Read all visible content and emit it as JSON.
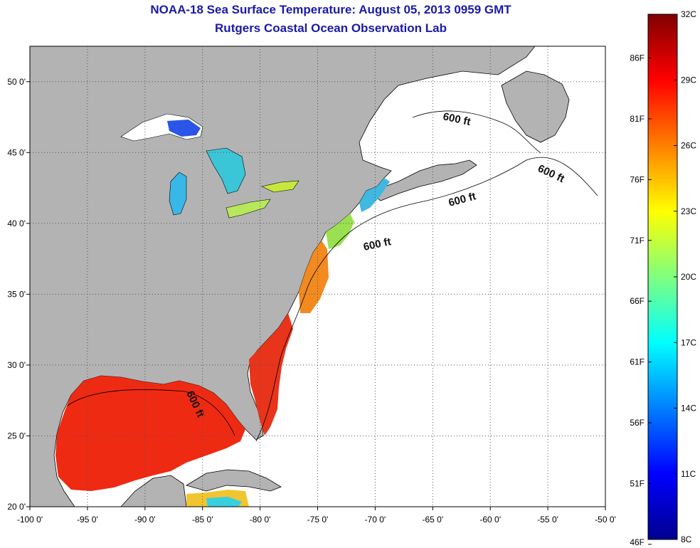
{
  "title": "NOAA-18 Sea Surface Temperature:  August 05, 2013 0959 GMT",
  "subtitle": "Rutgers Coastal Ocean Observation Lab",
  "map": {
    "lon_range": [
      -100,
      -50
    ],
    "lat_range": [
      20,
      52.5
    ],
    "lon_ticks": [
      {
        "value": -100,
        "label": "-100 0'"
      },
      {
        "value": -95,
        "label": "-95 0'"
      },
      {
        "value": -90,
        "label": "-90 0'"
      },
      {
        "value": -85,
        "label": "-85 0'"
      },
      {
        "value": -80,
        "label": "-80 0'"
      },
      {
        "value": -75,
        "label": "-75 0'"
      },
      {
        "value": -70,
        "label": "-70 0'"
      },
      {
        "value": -65,
        "label": "-65 0'"
      },
      {
        "value": -60,
        "label": "-60 0'"
      },
      {
        "value": -55,
        "label": "-55 0'"
      },
      {
        "value": -50,
        "label": "-50 0'"
      }
    ],
    "lat_ticks": [
      {
        "value": 50,
        "label": "50 0'"
      },
      {
        "value": 45,
        "label": "45 0'"
      },
      {
        "value": 40,
        "label": "40 0'"
      },
      {
        "value": 35,
        "label": "35 0'"
      },
      {
        "value": 30,
        "label": "30 0'"
      },
      {
        "value": 25,
        "label": "25 0'"
      },
      {
        "value": 20,
        "label": "20 0'"
      }
    ],
    "grid": "dotted",
    "land_color": "#b3b3b3",
    "ocean_color": "#ffffff",
    "isobath_labels": [
      "600 ft",
      "600 ft",
      "600 ft",
      "600 ft",
      "600 ft"
    ]
  },
  "colorbar": {
    "range_c": [
      8,
      32
    ],
    "celsius_labels": [
      {
        "value": 32,
        "label": "32C"
      },
      {
        "value": 29,
        "label": "29C"
      },
      {
        "value": 26,
        "label": "26C"
      },
      {
        "value": 23,
        "label": "23C"
      },
      {
        "value": 20,
        "label": "20C"
      },
      {
        "value": 17,
        "label": "17C"
      },
      {
        "value": 14,
        "label": "14C"
      },
      {
        "value": 11,
        "label": "11C"
      },
      {
        "value": 8,
        "label": "8C"
      }
    ],
    "fahrenheit_labels": [
      {
        "value": 86,
        "label": "86F"
      },
      {
        "value": 81,
        "label": "81F"
      },
      {
        "value": 76,
        "label": "76F"
      },
      {
        "value": 71,
        "label": "71F"
      },
      {
        "value": 66,
        "label": "66F"
      },
      {
        "value": 61,
        "label": "61F"
      },
      {
        "value": 56,
        "label": "56F"
      },
      {
        "value": 51,
        "label": "51F"
      },
      {
        "value": 46,
        "label": "46F"
      }
    ],
    "colormap": "jet"
  }
}
